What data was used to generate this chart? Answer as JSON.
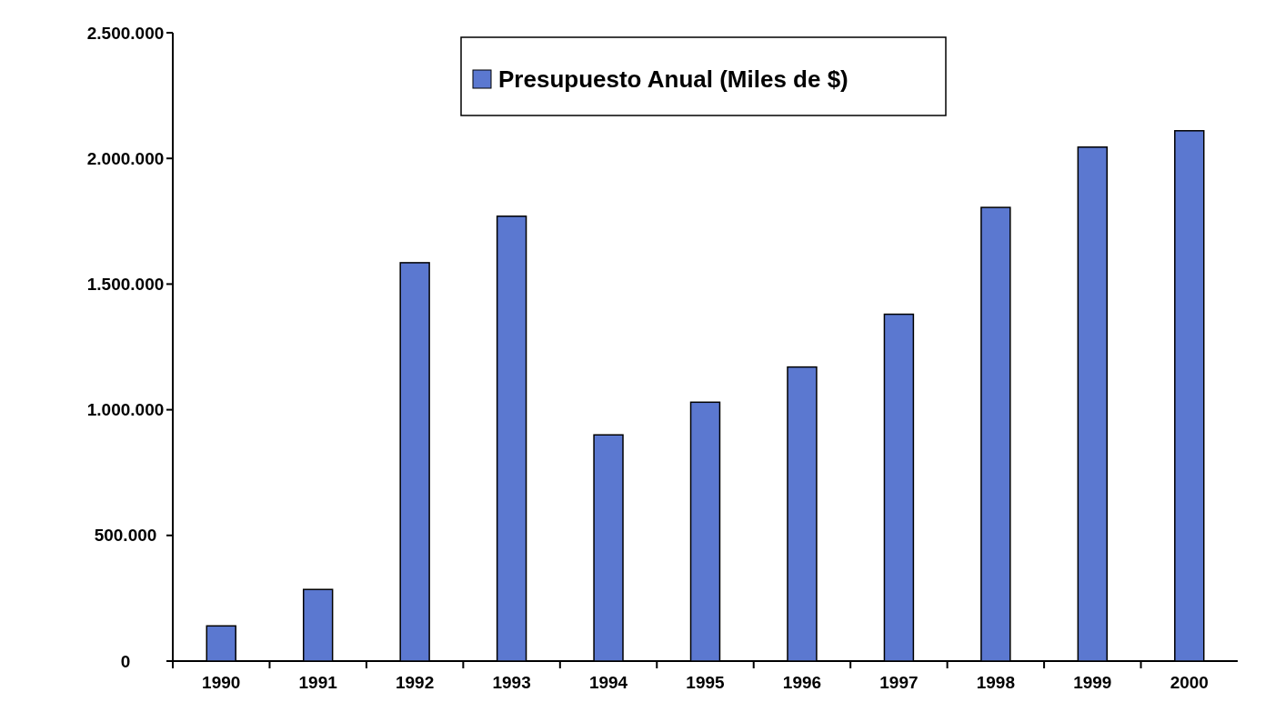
{
  "chart_data": {
    "type": "bar",
    "categories": [
      "1990",
      "1991",
      "1992",
      "1993",
      "1994",
      "1995",
      "1996",
      "1997",
      "1998",
      "1999",
      "2000"
    ],
    "series": [
      {
        "name": "Presupuesto Anual (Miles de $)",
        "color": "#5b78d0",
        "values": [
          140000,
          285000,
          1585000,
          1770000,
          900000,
          1030000,
          1170000,
          1380000,
          1805000,
          2045000,
          2110000
        ]
      }
    ],
    "ylim": [
      0,
      2500000
    ],
    "yticks": [
      {
        "value": 0,
        "label": "0"
      },
      {
        "value": 500000,
        "label": "500.000"
      },
      {
        "value": 1000000,
        "label": "1.000.000"
      },
      {
        "value": 1500000,
        "label": "1.500.000"
      },
      {
        "value": 2000000,
        "label": "2.000.000"
      },
      {
        "value": 2500000,
        "label": "2.500.000"
      }
    ],
    "legend": "top",
    "grid": false
  }
}
